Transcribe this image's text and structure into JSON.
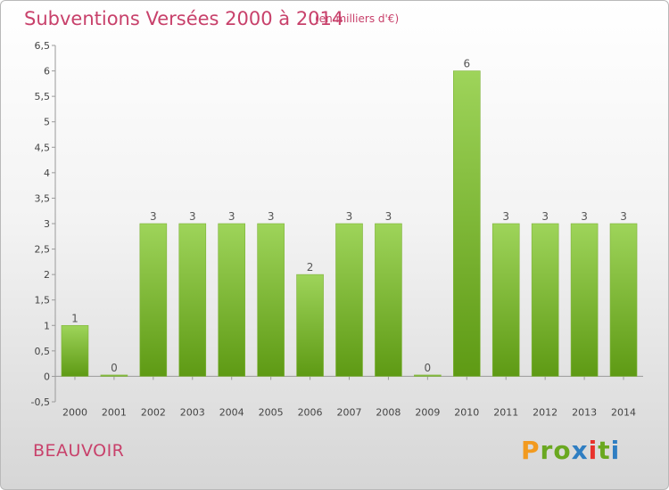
{
  "header": {
    "title": "Subventions Versées 2000 à 2014",
    "unit": "(en milliers d'€)"
  },
  "footer": {
    "commune": "BEAUVOIR",
    "logo_text": "Proxiti"
  },
  "colors": {
    "title": "#c8416b",
    "bar_top": "#9ed45a",
    "bar_bottom": "#5e9a14",
    "logo_letters": [
      "#f29a1f",
      "#6aa820",
      "#6aa820",
      "#2f7ec2",
      "#e8312c",
      "#6aa820",
      "#2f7ec2"
    ]
  },
  "chart_data": {
    "type": "bar",
    "title": "Subventions Versées 2000 à 2014",
    "categories": [
      "2000",
      "2001",
      "2002",
      "2003",
      "2004",
      "2005",
      "2006",
      "2007",
      "2008",
      "2009",
      "2010",
      "2011",
      "2012",
      "2013",
      "2014"
    ],
    "values": [
      1,
      0,
      3,
      3,
      3,
      3,
      2,
      3,
      3,
      0,
      6,
      3,
      3,
      3,
      3
    ],
    "data_labels": [
      "1",
      "0",
      "3",
      "3",
      "3",
      "3",
      "2",
      "3",
      "3",
      "0",
      "6",
      "3",
      "3",
      "3",
      "3"
    ],
    "ylim": [
      -0.5,
      6.5
    ],
    "yticks": [
      -0.5,
      0,
      0.5,
      1,
      1.5,
      2,
      2.5,
      3,
      3.5,
      4,
      4.5,
      5,
      5.5,
      6,
      6.5
    ],
    "ytick_labels": [
      "-0,5",
      "0",
      "0,5",
      "1",
      "1,5",
      "2",
      "2,5",
      "3",
      "3,5",
      "4",
      "4,5",
      "5",
      "5,5",
      "6",
      "6,5"
    ],
    "grid": false,
    "legend": "none"
  }
}
